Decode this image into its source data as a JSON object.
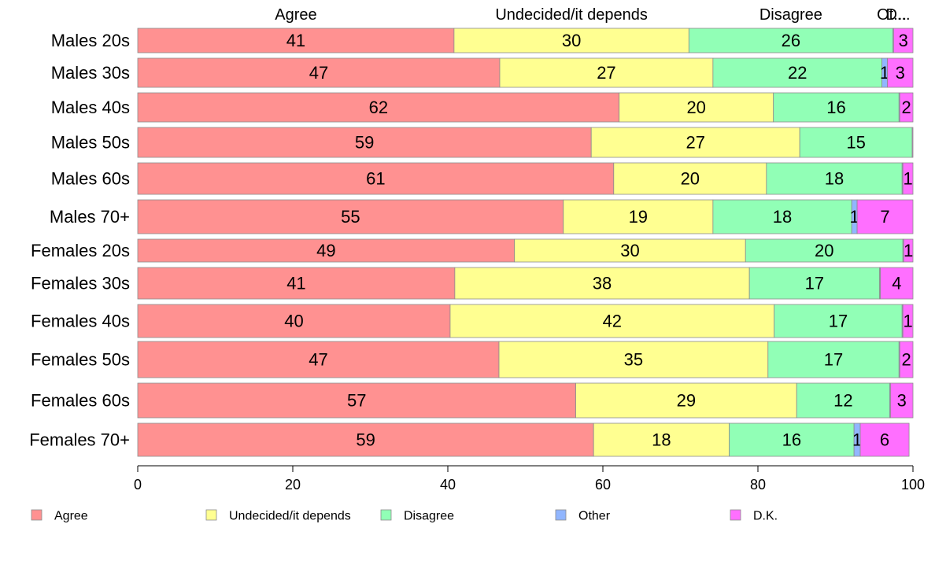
{
  "chart_data": {
    "type": "bar",
    "orientation": "horizontal",
    "stacked": true,
    "categories": [
      "Males 20s",
      "Males 30s",
      "Males 40s",
      "Males 50s",
      "Males 60s",
      "Males 70+",
      "Females 20s",
      "Females 30s",
      "Females 40s",
      "Females 50s",
      "Females 60s",
      "Females 70+"
    ],
    "series": [
      {
        "name": "Agree",
        "color": "#ff9191",
        "values": [
          40.8,
          46.7,
          62.1,
          58.5,
          61.4,
          54.9,
          48.6,
          40.9,
          40.3,
          46.6,
          56.5,
          58.8
        ],
        "labels": [
          "41",
          "47",
          "62",
          "59",
          "61",
          "55",
          "49",
          "41",
          "40",
          "47",
          "57",
          "59"
        ]
      },
      {
        "name": "Undecided/it depends",
        "color": "#ffff91",
        "values": [
          30.3,
          27.5,
          19.9,
          26.9,
          19.7,
          19.3,
          29.8,
          38.0,
          41.8,
          34.7,
          28.5,
          17.5
        ],
        "labels": [
          "30",
          "27",
          "20",
          "27",
          "20",
          "19",
          "30",
          "38",
          "42",
          "35",
          "29",
          "18"
        ]
      },
      {
        "name": "Disagree",
        "color": "#91ffb6",
        "values": [
          26.3,
          21.8,
          16.2,
          14.5,
          17.5,
          17.9,
          20.3,
          16.8,
          16.5,
          16.9,
          12.0,
          16.1
        ],
        "labels": [
          "26",
          "22",
          "16",
          "15",
          "18",
          "18",
          "20",
          "17",
          "17",
          "17",
          "12",
          "16"
        ]
      },
      {
        "name": "Other",
        "color": "#91b6ff",
        "values": [
          0.1,
          0.7,
          0.1,
          0.0,
          0.1,
          0.7,
          0.1,
          0.1,
          0.1,
          0.1,
          0.1,
          0.8
        ],
        "labels": [
          "",
          "1",
          "",
          "",
          "",
          "1",
          "",
          "",
          "",
          "",
          "",
          "1"
        ]
      },
      {
        "name": "D.K.",
        "color": "#ff6fff",
        "values": [
          2.5,
          3.3,
          1.7,
          0.1,
          1.3,
          7.2,
          1.2,
          4.2,
          1.3,
          1.7,
          2.9,
          6.3
        ],
        "labels": [
          "3",
          "3",
          "2",
          "",
          "1",
          "7",
          "1",
          "4",
          "1",
          "2",
          "3",
          "6"
        ]
      }
    ],
    "xlim": [
      0,
      100
    ],
    "xticks": [
      0,
      20,
      40,
      60,
      80,
      100
    ],
    "header_labels": [
      "Agree",
      "Undecided/it depends",
      "Disagree",
      "Ot...",
      "D..."
    ],
    "legend_position": "bottom",
    "grid": false
  }
}
